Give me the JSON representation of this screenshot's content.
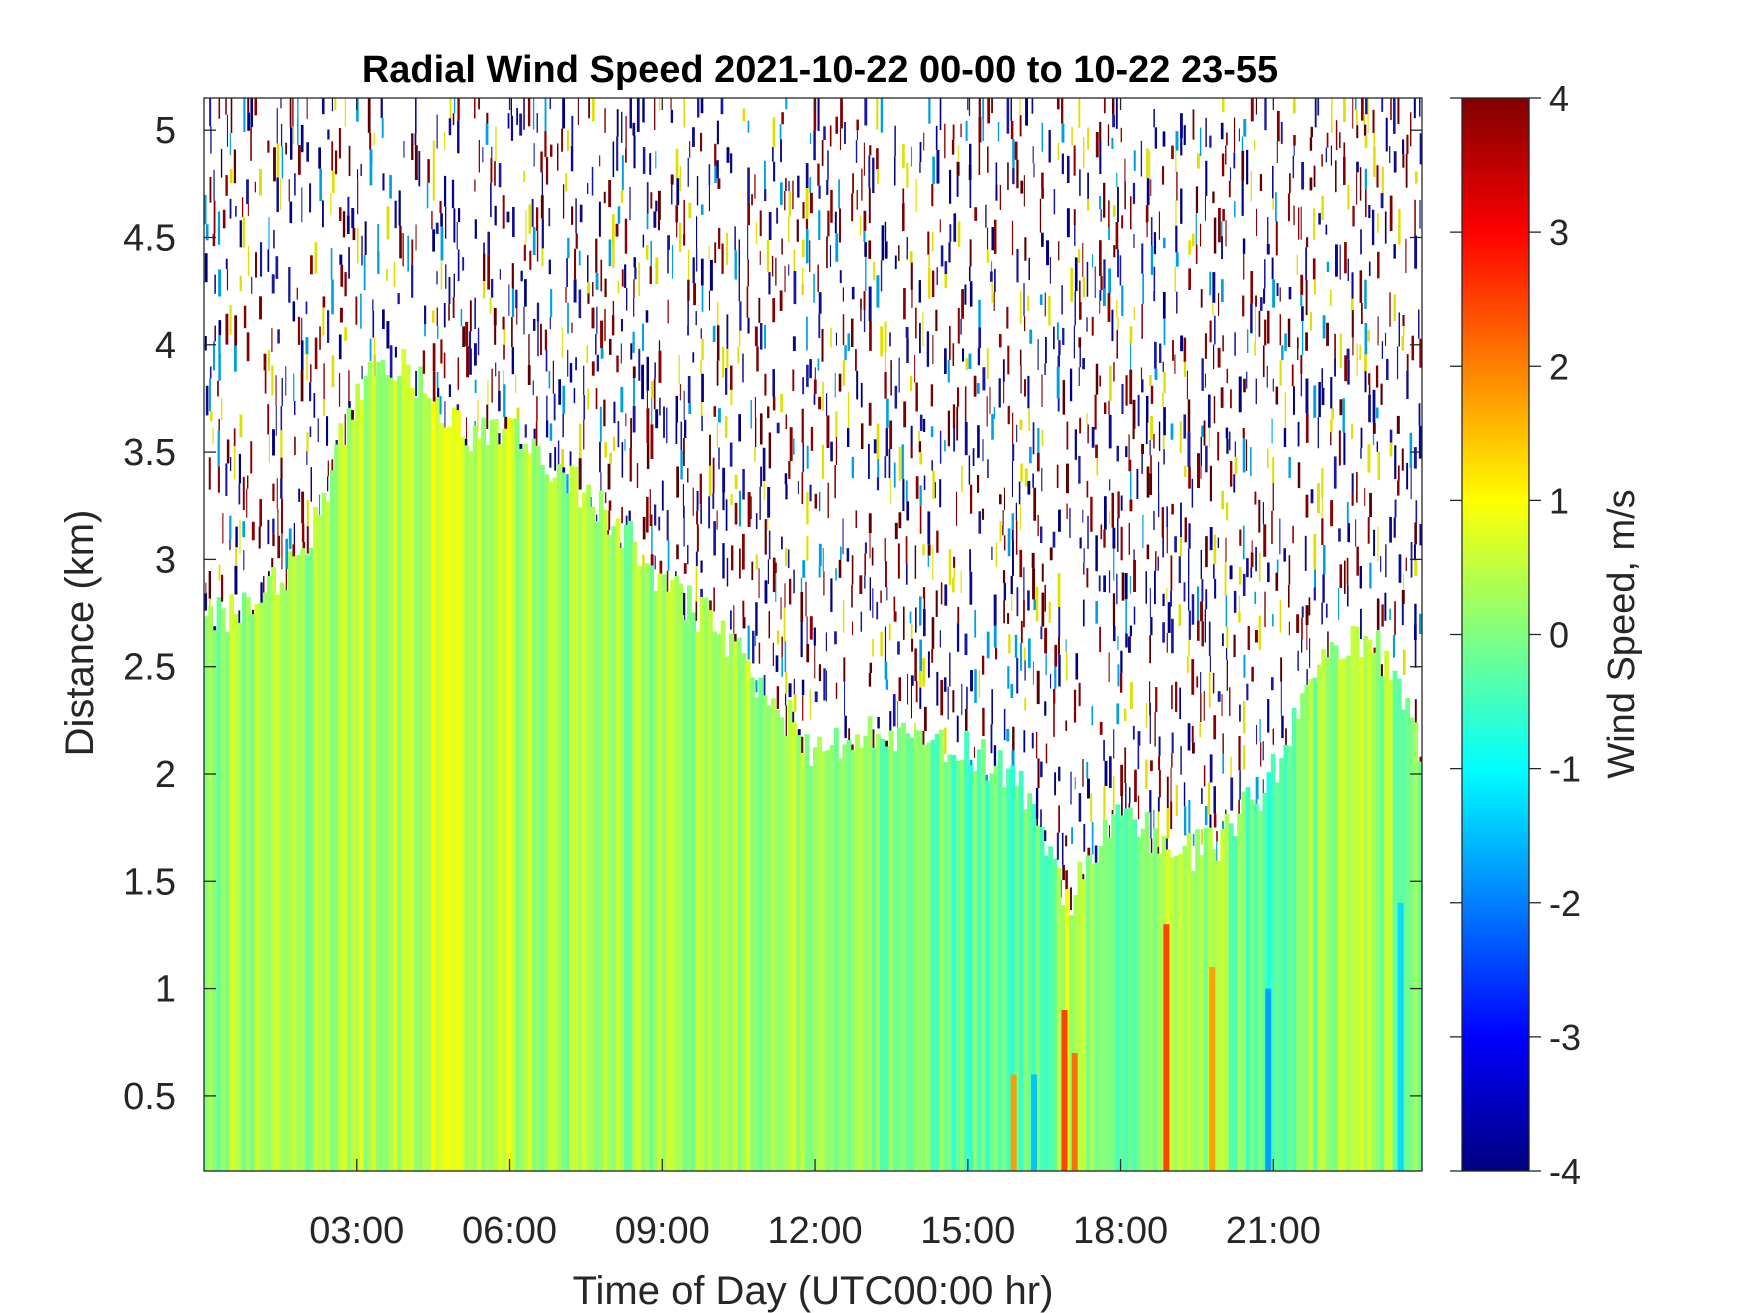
{
  "chart_data": {
    "type": "heatmap",
    "title": "Radial Wind Speed 2021-10-22 00-00 to 10-22 23-55",
    "xlabel": "Time of Day (UTC00:00 hr)",
    "ylabel": "Distance (km)",
    "colorbar_label": "Wind Speed, m/s",
    "x_unit": "hours UTC",
    "xlim": [
      0.0,
      23.92
    ],
    "ylim": [
      0.15,
      5.15
    ],
    "clim": [
      -4,
      4
    ],
    "colormap": "jet",
    "grid": false,
    "x_ticks": [
      {
        "value": 3,
        "label": "03:00"
      },
      {
        "value": 6,
        "label": "06:00"
      },
      {
        "value": 9,
        "label": "09:00"
      },
      {
        "value": 12,
        "label": "12:00"
      },
      {
        "value": 15,
        "label": "15:00"
      },
      {
        "value": 18,
        "label": "18:00"
      },
      {
        "value": 21,
        "label": "21:00"
      }
    ],
    "y_ticks": [
      {
        "value": 0.5,
        "label": "0.5"
      },
      {
        "value": 1,
        "label": "1"
      },
      {
        "value": 1.5,
        "label": "1.5"
      },
      {
        "value": 2,
        "label": "2"
      },
      {
        "value": 2.5,
        "label": "2.5"
      },
      {
        "value": 3,
        "label": "3"
      },
      {
        "value": 3.5,
        "label": "3.5"
      },
      {
        "value": 4,
        "label": "4"
      },
      {
        "value": 4.5,
        "label": "4.5"
      },
      {
        "value": 5,
        "label": "5"
      }
    ],
    "colorbar_ticks": [
      {
        "value": 4,
        "label": "4"
      },
      {
        "value": 3,
        "label": "3"
      },
      {
        "value": 2,
        "label": "2"
      },
      {
        "value": 1,
        "label": "1"
      },
      {
        "value": 0,
        "label": "0"
      },
      {
        "value": -1,
        "label": "-1"
      },
      {
        "value": -2,
        "label": "-2"
      },
      {
        "value": -3,
        "label": "-3"
      },
      {
        "value": -4,
        "label": "-4"
      }
    ],
    "valid_data_top_km": {
      "time": [
        0.0,
        1.0,
        2.0,
        3.0,
        4.0,
        5.0,
        6.0,
        7.0,
        8.0,
        9.0,
        10.0,
        11.0,
        12.0,
        13.0,
        14.0,
        15.0,
        16.0,
        17.0,
        18.0,
        19.0,
        20.0,
        21.0,
        22.0,
        23.0,
        23.92
      ],
      "distance": [
        2.7,
        2.8,
        3.0,
        3.8,
        3.9,
        3.6,
        3.6,
        3.4,
        3.2,
        2.9,
        2.7,
        2.4,
        2.1,
        2.2,
        2.2,
        2.1,
        2.0,
        1.4,
        1.9,
        1.6,
        1.7,
        2.0,
        2.6,
        2.6,
        2.1
      ]
    },
    "background_wind_speed": {
      "time": [
        0.0,
        2.0,
        3.5,
        5.0,
        6.5,
        8.0,
        9.5,
        11.0,
        12.5,
        14.0,
        15.5,
        16.5,
        17.0,
        18.0,
        19.0,
        19.8,
        21.0,
        22.0,
        23.92
      ],
      "wind_speed": [
        0.2,
        0.3,
        0.5,
        0.6,
        0.4,
        0.2,
        0.3,
        0.3,
        0.1,
        -0.1,
        -0.3,
        -0.2,
        0.6,
        -0.3,
        0.4,
        0.3,
        -0.5,
        0.4,
        0.1
      ]
    },
    "strong_updraft_streaks": [
      {
        "time": 15.9,
        "distance_top": 0.6,
        "wind_speed": 1.8
      },
      {
        "time": 16.9,
        "distance_top": 0.9,
        "wind_speed": 2.6
      },
      {
        "time": 17.1,
        "distance_top": 0.7,
        "wind_speed": 2.2
      },
      {
        "time": 18.9,
        "distance_top": 1.3,
        "wind_speed": 2.6
      },
      {
        "time": 19.8,
        "distance_top": 1.1,
        "wind_speed": 1.8
      }
    ],
    "downdraft_streaks": [
      {
        "time": 16.3,
        "distance_top": 0.6,
        "wind_speed": -1.5
      },
      {
        "time": 20.9,
        "distance_top": 1.0,
        "wind_speed": -1.8
      },
      {
        "time": 23.5,
        "distance_top": 1.4,
        "wind_speed": -1.3
      }
    ]
  }
}
